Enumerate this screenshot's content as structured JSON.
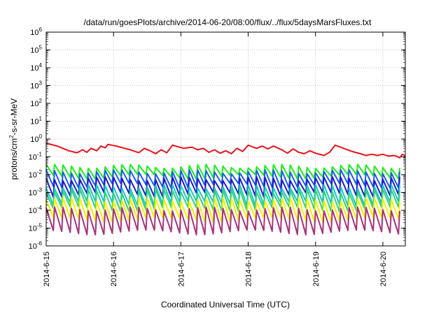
{
  "chart_data": {
    "type": "line",
    "title": "/data/run/goesPlots/archive/2014-06-20/08:00/flux/../flux/5daysMarsFluxes.txt",
    "xlabel": "Coordinated Universal Time (UTC)",
    "ylabel": "protons/cm²-s-sr-MeV",
    "ylabel_parts": {
      "pre": "protons/cm",
      "sup": "2",
      "post": "-s-sr-MeV"
    },
    "yscale": "log",
    "ylim": [
      1e-06,
      1000000.0
    ],
    "y_ticks": [
      {
        "value": 1e-06,
        "base": "10",
        "exp": "-6"
      },
      {
        "value": 1e-05,
        "base": "10",
        "exp": "-5"
      },
      {
        "value": 0.0001,
        "base": "10",
        "exp": "-4"
      },
      {
        "value": 0.001,
        "base": "10",
        "exp": "-3"
      },
      {
        "value": 0.01,
        "base": "10",
        "exp": "-2"
      },
      {
        "value": 0.1,
        "base": "10",
        "exp": "-1"
      },
      {
        "value": 1.0,
        "base": "10",
        "exp": "0"
      },
      {
        "value": 10.0,
        "base": "10",
        "exp": "1"
      },
      {
        "value": 100.0,
        "base": "10",
        "exp": "2"
      },
      {
        "value": 1000.0,
        "base": "10",
        "exp": "3"
      },
      {
        "value": 10000.0,
        "base": "10",
        "exp": "4"
      },
      {
        "value": 100000.0,
        "base": "10",
        "exp": "5"
      },
      {
        "value": 1000000.0,
        "base": "10",
        "exp": "6"
      }
    ],
    "xlim": [
      "2014-06-15T00:00",
      "2014-06-20T08:00"
    ],
    "x_ticks": [
      {
        "value": "2014-06-15T00:00",
        "label": "2014-6-15"
      },
      {
        "value": "2014-06-16T00:00",
        "label": "2014-6-16"
      },
      {
        "value": "2014-06-17T00:00",
        "label": "2014-6-17"
      },
      {
        "value": "2014-06-18T00:00",
        "label": "2014-6-18"
      },
      {
        "value": "2014-06-19T00:00",
        "label": "2014-6-19"
      },
      {
        "value": "2014-06-20T00:00",
        "label": "2014-6-20"
      }
    ],
    "grid": true,
    "legend": "none",
    "series": [
      {
        "color": "#e8141b",
        "values": [
          [
            "2014-06-15T00:00",
            0.58
          ],
          [
            "2014-06-15T04:00",
            0.4
          ],
          [
            "2014-06-15T08:00",
            0.22
          ],
          [
            "2014-06-15T11:00",
            0.17
          ],
          [
            "2014-06-15T13:00",
            0.25
          ],
          [
            "2014-06-15T14:30",
            0.18
          ],
          [
            "2014-06-15T16:00",
            0.3
          ],
          [
            "2014-06-15T18:00",
            0.22
          ],
          [
            "2014-06-15T19:30",
            0.4
          ],
          [
            "2014-06-15T21:00",
            0.32
          ],
          [
            "2014-06-15T22:00",
            0.5
          ],
          [
            "2014-06-16T01:00",
            0.4
          ],
          [
            "2014-06-16T06:00",
            0.25
          ],
          [
            "2014-06-16T09:00",
            0.17
          ],
          [
            "2014-06-16T11:00",
            0.3
          ],
          [
            "2014-06-16T13:00",
            0.22
          ],
          [
            "2014-06-16T15:00",
            0.15
          ],
          [
            "2014-06-16T17:00",
            0.25
          ],
          [
            "2014-06-16T19:00",
            0.17
          ],
          [
            "2014-06-16T21:00",
            0.45
          ],
          [
            "2014-06-17T01:00",
            0.3
          ],
          [
            "2014-06-17T04:00",
            0.35
          ],
          [
            "2014-06-17T06:00",
            0.25
          ],
          [
            "2014-06-17T08:00",
            0.3
          ],
          [
            "2014-06-17T10:00",
            0.18
          ],
          [
            "2014-06-17T12:00",
            0.25
          ],
          [
            "2014-06-17T14:00",
            0.16
          ],
          [
            "2014-06-17T16:00",
            0.22
          ],
          [
            "2014-06-17T18:00",
            0.15
          ],
          [
            "2014-06-17T20:00",
            0.3
          ],
          [
            "2014-06-17T22:00",
            0.2
          ],
          [
            "2014-06-18T00:00",
            0.45
          ],
          [
            "2014-06-18T03:00",
            0.3
          ],
          [
            "2014-06-18T05:00",
            0.4
          ],
          [
            "2014-06-18T07:00",
            0.28
          ],
          [
            "2014-06-18T09:00",
            0.4
          ],
          [
            "2014-06-18T12:00",
            0.25
          ],
          [
            "2014-06-18T14:00",
            0.16
          ],
          [
            "2014-06-18T16:00",
            0.28
          ],
          [
            "2014-06-18T18:00",
            0.18
          ],
          [
            "2014-06-18T20:00",
            0.15
          ],
          [
            "2014-06-18T22:00",
            0.22
          ],
          [
            "2014-06-19T00:00",
            0.16
          ],
          [
            "2014-06-19T03:00",
            0.12
          ],
          [
            "2014-06-19T05:00",
            0.18
          ],
          [
            "2014-06-19T07:00",
            0.45
          ],
          [
            "2014-06-19T10:00",
            0.3
          ],
          [
            "2014-06-19T13:00",
            0.2
          ],
          [
            "2014-06-19T16:00",
            0.15
          ],
          [
            "2014-06-19T18:00",
            0.12
          ],
          [
            "2014-06-19T20:00",
            0.14
          ],
          [
            "2014-06-19T22:00",
            0.12
          ],
          [
            "2014-06-20T00:00",
            0.14
          ],
          [
            "2014-06-20T02:00",
            0.11
          ],
          [
            "2014-06-20T04:00",
            0.12
          ],
          [
            "2014-06-20T06:00",
            0.09
          ],
          [
            "2014-06-20T07:00",
            0.14
          ],
          [
            "2014-06-20T08:00",
            0.11
          ]
        ]
      },
      {
        "color": "#19f019",
        "pattern": {
          "base": 0.016,
          "peak": 0.03,
          "trough": 0.008,
          "cycle_hours": 3.0
        }
      },
      {
        "color": "#1a5cf2",
        "pattern": {
          "base": 0.006,
          "peak": 0.015,
          "trough": 0.0025,
          "cycle_hours": 3.0
        }
      },
      {
        "color": "#1c1cc8",
        "pattern": {
          "base": 0.002,
          "peak": 0.006,
          "trough": 0.0008,
          "cycle_hours": 3.0
        }
      },
      {
        "color": "#18c8c8",
        "pattern": {
          "base": 0.0008,
          "peak": 0.0022,
          "trough": 0.00025,
          "cycle_hours": 3.0
        }
      },
      {
        "color": "#2fd37a",
        "pattern": {
          "base": 0.0004,
          "peak": 0.0012,
          "trough": 0.00012,
          "cycle_hours": 3.0
        }
      },
      {
        "color": "#f0f000",
        "pattern": {
          "base": 0.00012,
          "peak": 0.0004,
          "trough": 3e-05,
          "cycle_hours": 3.0
        }
      },
      {
        "color": "#a8327d",
        "pattern": {
          "base": 4e-05,
          "peak": 0.00012,
          "trough": 6e-06,
          "cycle_hours": 3.0
        }
      }
    ]
  }
}
